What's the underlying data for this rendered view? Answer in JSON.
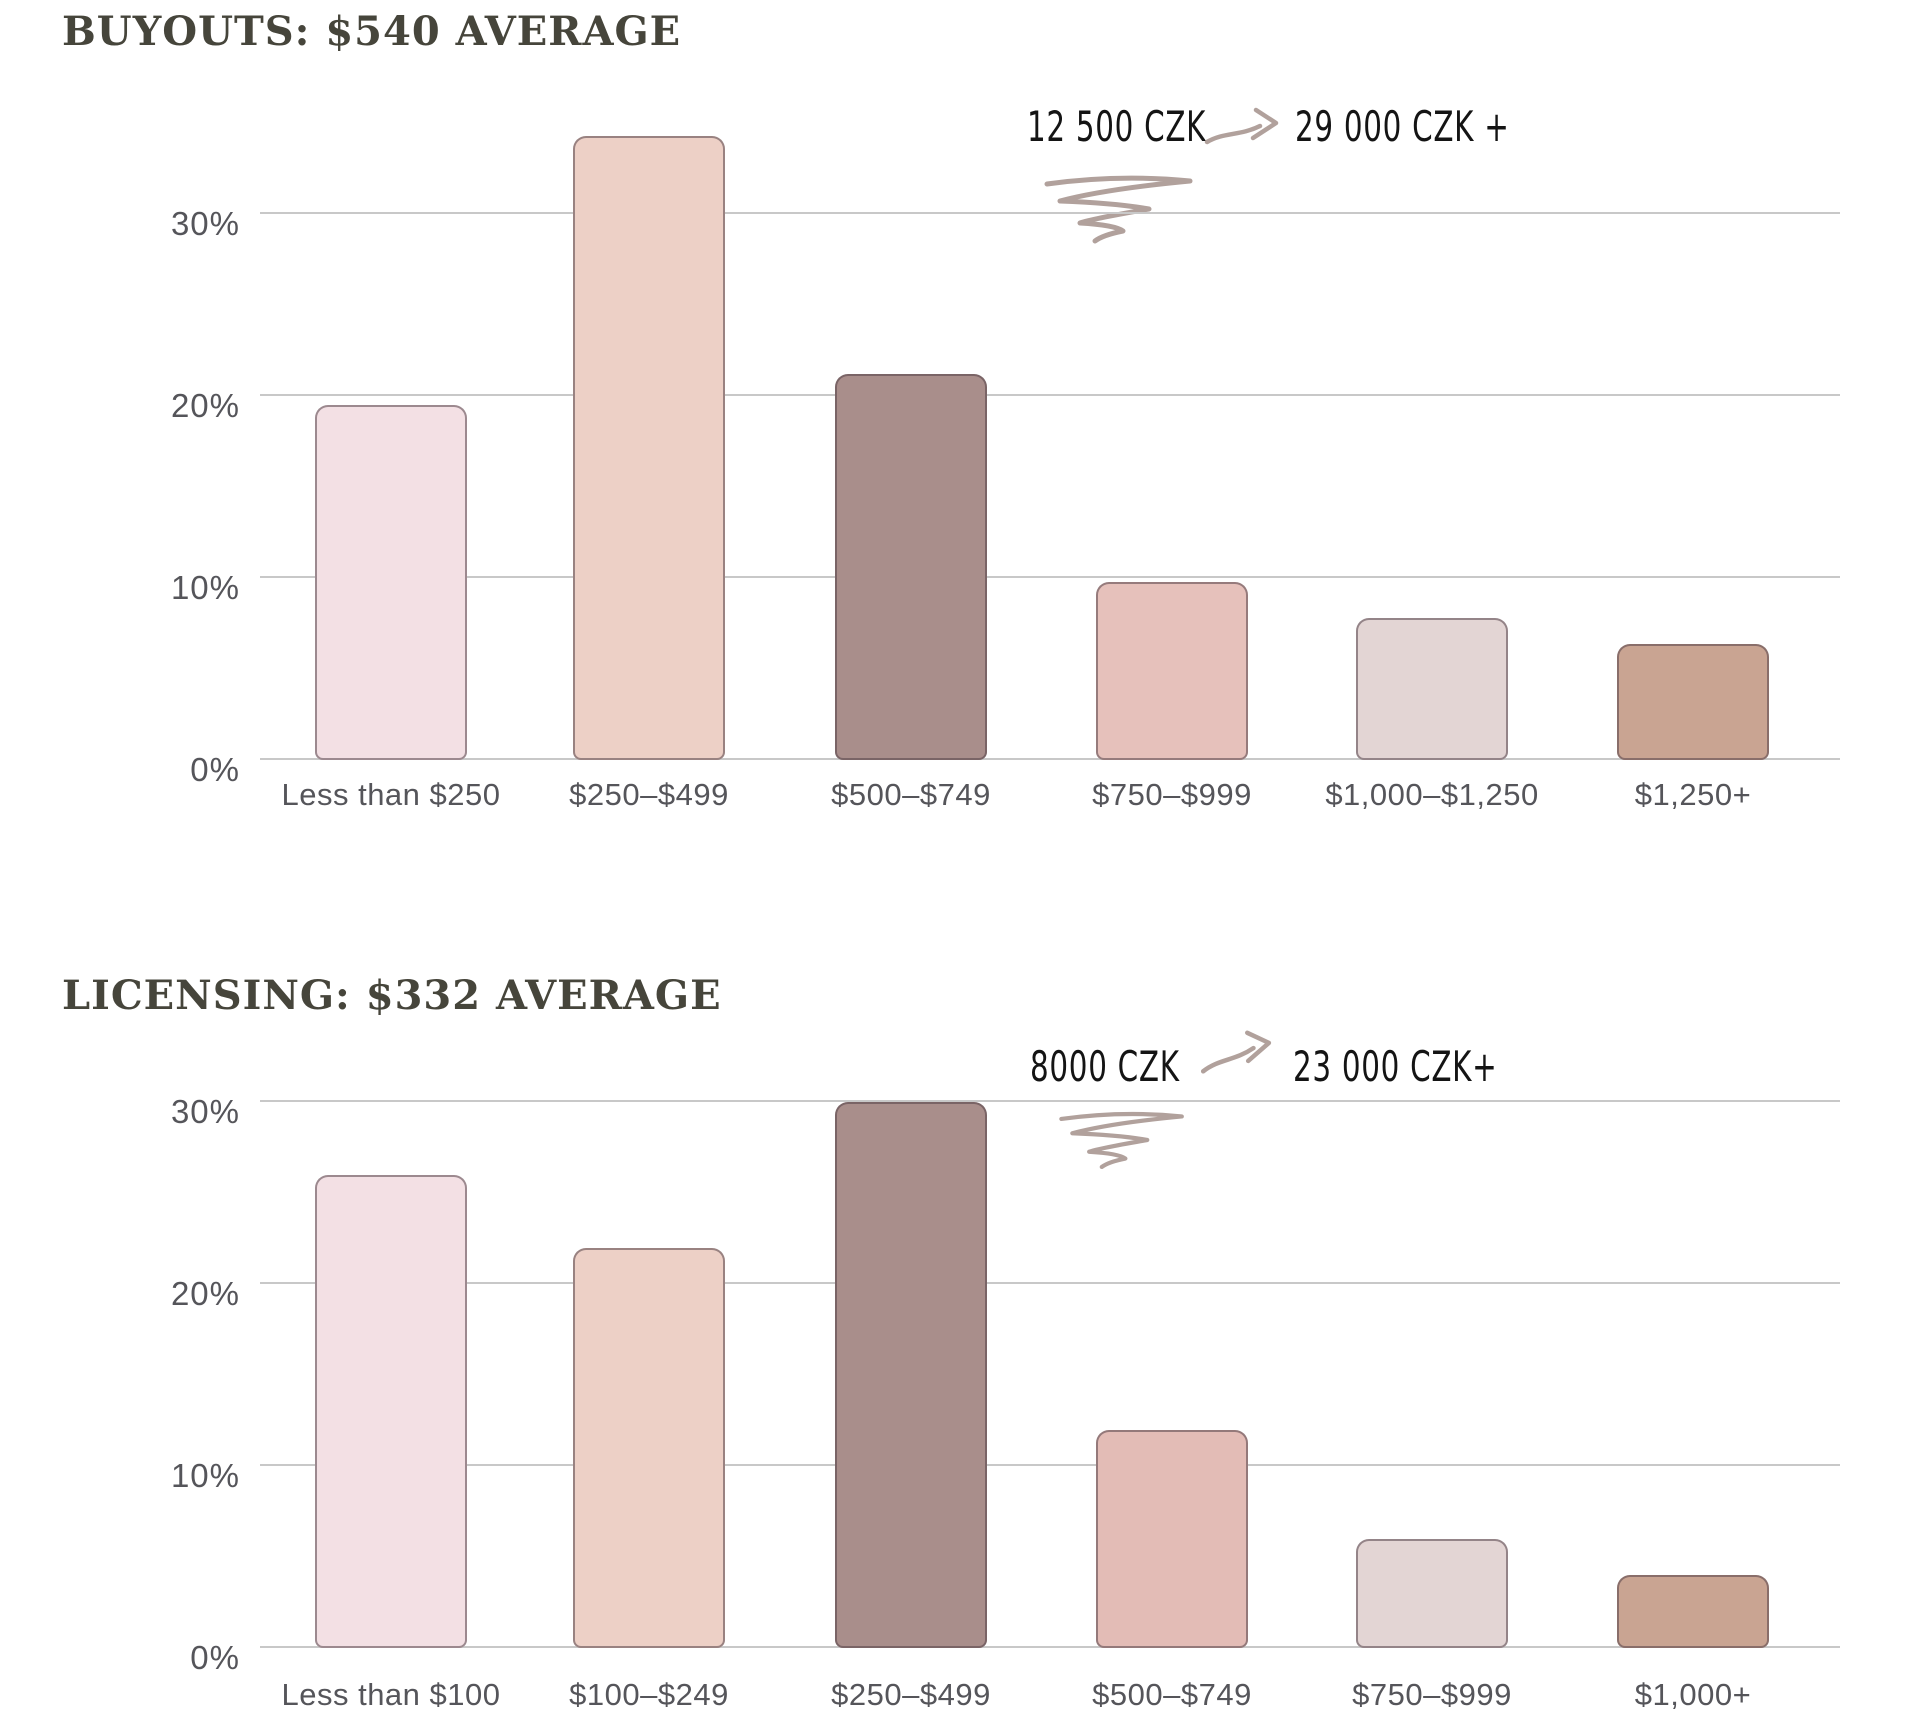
{
  "palette": {
    "background": "#ffffff",
    "grid": "#c8c8c8",
    "title": "#46453b",
    "axis_text": "#55555a",
    "annotation_text": "#141414",
    "sketch": "#b1a19c"
  },
  "icons": {
    "annotation_arrow": "hand-drawn-arrow-right",
    "annotation_scribble": "hand-drawn-scribble-underline"
  },
  "chart_data": [
    {
      "type": "bar",
      "title": "BUYOUTS: $540 AVERAGE",
      "categories": [
        "Less than $250",
        "$250–$499",
        "$500–$749",
        "$750–$999",
        "$1,000–$1,250",
        "$1,250+"
      ],
      "values": [
        19.5,
        34.3,
        21.2,
        9.8,
        7.8,
        6.4
      ],
      "unit": "%",
      "xlabel": "",
      "ylabel": "",
      "ylim": [
        0,
        35.7
      ],
      "yticks": [
        0,
        10,
        20,
        30
      ],
      "ytick_labels": [
        "0%",
        "10%",
        "20%",
        "30%"
      ],
      "grid": true,
      "legend": false,
      "bar_colors": [
        "#f3e0e4",
        "#edd0c6",
        "#a98e8b",
        "#e6c1bb",
        "#e3d5d4",
        "#c9a492"
      ],
      "annotation": {
        "from": "12 500 CZK",
        "to": "29 000 CZK +"
      }
    },
    {
      "type": "bar",
      "title": "LICENSING: $332 AVERAGE",
      "categories": [
        "Less than $100",
        "$100–$249",
        "$250–$499",
        "$500–$749",
        "$750–$999",
        "$1,000+"
      ],
      "values": [
        26,
        22,
        30,
        12,
        6,
        4
      ],
      "unit": "%",
      "xlabel": "",
      "ylabel": "",
      "ylim": [
        0,
        35.7
      ],
      "yticks": [
        0,
        10,
        20,
        30
      ],
      "ytick_labels": [
        "0%",
        "10%",
        "20%",
        "30%"
      ],
      "grid": true,
      "legend": false,
      "bar_colors": [
        "#f3e0e4",
        "#edd0c6",
        "#a98e8b",
        "#e3bcb6",
        "#e3d5d4",
        "#c9a492"
      ],
      "annotation": {
        "from": "8000 CZK",
        "to": "23 000 CZK+"
      }
    }
  ]
}
